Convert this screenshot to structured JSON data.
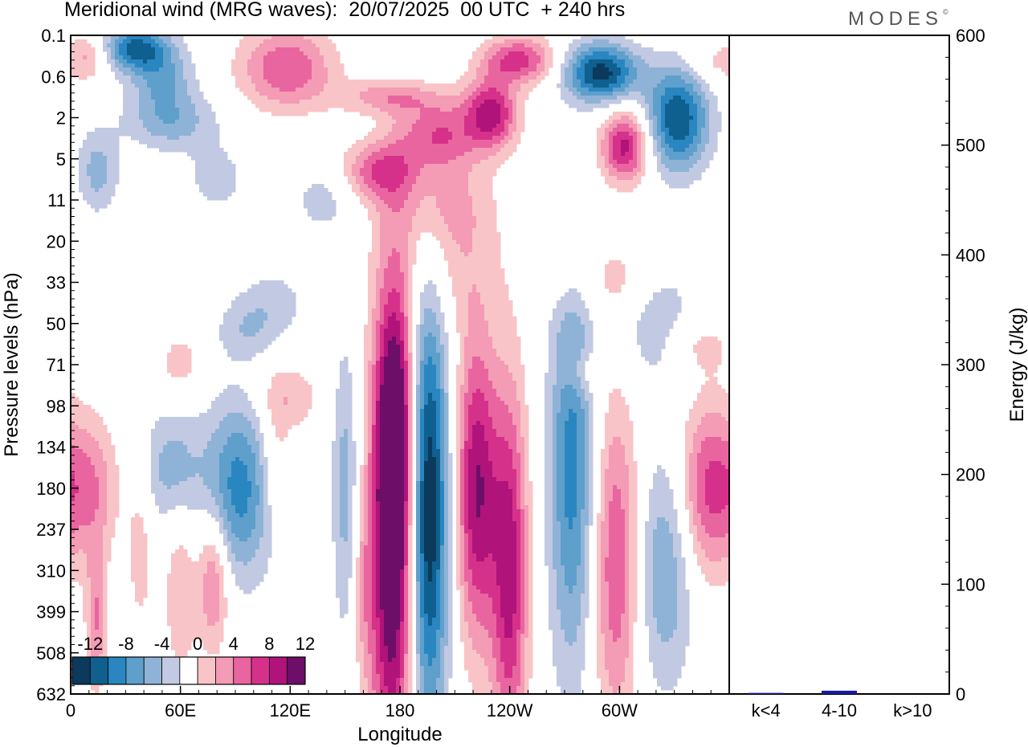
{
  "title": "Meridional wind (MRG waves):  20/07/2025  00 UTC  + 240 hrs",
  "brand": {
    "name": "MODES",
    "mark": "©"
  },
  "chart_data": [
    {
      "type": "heatmap",
      "xlabel": "Longitude",
      "ylabel": "Pressure levels (hPa)",
      "x_ticks": [
        "0",
        "60E",
        "120E",
        "180",
        "120W",
        "60W"
      ],
      "x_tick_degrees": [
        0,
        60,
        120,
        180,
        240,
        300
      ],
      "xlim": [
        0,
        360
      ],
      "y_ticks": [
        "0.1",
        "0.6",
        "2",
        "5",
        "11",
        "20",
        "33",
        "50",
        "71",
        "98",
        "134",
        "180",
        "237",
        "310",
        "399",
        "508",
        "632"
      ],
      "colorbar_labels": [
        "-12",
        "-8",
        "-4",
        "0",
        "4",
        "8",
        "12"
      ],
      "levels": [
        -14,
        -12,
        -10,
        -8,
        -6,
        -4,
        -2,
        2,
        4,
        6,
        8,
        10,
        12,
        14
      ],
      "colors": [
        "#0b3a5c",
        "#0f5f8f",
        "#2a86c0",
        "#5e9fcc",
        "#8fb3d6",
        "#c2c9e2",
        "#ffffff",
        "#f9c4c7",
        "#f49bb5",
        "#e9659f",
        "#d6318a",
        "#b0137a",
        "#6d0e69"
      ],
      "features": [
        {
          "lon": 176,
          "lev": 12.5,
          "w": 9,
          "h": 4.2,
          "v": 15
        },
        {
          "lon": 178,
          "lev": 9.5,
          "w": 7,
          "h": 2.2,
          "v": 9
        },
        {
          "lon": 195,
          "lev": 11.5,
          "w": 8,
          "h": 3.8,
          "v": -15
        },
        {
          "lon": 222,
          "lev": 11,
          "w": 8,
          "h": 2.6,
          "v": 12
        },
        {
          "lon": 240,
          "lev": 13,
          "w": 7,
          "h": 3.2,
          "v": 11
        },
        {
          "lon": 274,
          "lev": 10.5,
          "w": 9,
          "h": 3.5,
          "v": -9
        },
        {
          "lon": 298,
          "lev": 12.8,
          "w": 9,
          "h": 2.8,
          "v": 8
        },
        {
          "lon": 325,
          "lev": 13,
          "w": 11,
          "h": 2,
          "v": -6
        },
        {
          "lon": 348,
          "lev": 11,
          "w": 11,
          "h": 1.5,
          "v": 8
        },
        {
          "lon": 10,
          "lev": 11,
          "w": 11,
          "h": 1.2,
          "v": 6
        },
        {
          "lon": 92,
          "lev": 11,
          "w": 14,
          "h": 1.5,
          "v": -9
        },
        {
          "lon": 55,
          "lev": 10.5,
          "w": 11,
          "h": 1,
          "v": -5
        },
        {
          "lon": 60,
          "lev": 13.5,
          "w": 6,
          "h": 1.5,
          "v": 4
        },
        {
          "lon": 78,
          "lev": 13.2,
          "w": 6,
          "h": 1.2,
          "v": 7
        },
        {
          "lon": 38,
          "lev": 12.5,
          "w": 5,
          "h": 1.5,
          "v": 3
        },
        {
          "lon": 14,
          "lev": 14.2,
          "w": 4,
          "h": 1.2,
          "v": 6
        },
        {
          "lon": 150,
          "lev": 11,
          "w": 5,
          "h": 2.5,
          "v": -5
        },
        {
          "lon": 112,
          "lev": 10.5,
          "w": 6,
          "h": 1,
          "v": 4
        },
        {
          "lon": 160,
          "lev": 13.5,
          "w": 4,
          "h": 1.5,
          "v": 3
        },
        {
          "lon": 118,
          "lev": 8.8,
          "w": 12,
          "h": 0.6,
          "v": 4
        },
        {
          "lon": 60,
          "lev": 8,
          "w": 10,
          "h": 0.6,
          "v": 3
        },
        {
          "lon": 320,
          "lev": 7,
          "w": 16,
          "h": 1,
          "v": -4
        },
        {
          "lon": 342,
          "lev": 7.5,
          "w": 14,
          "h": 0.5,
          "v": 3
        },
        {
          "lon": 110,
          "lev": 6.5,
          "w": 14,
          "h": 0.6,
          "v": -3
        },
        {
          "lon": 280,
          "lev": 8.2,
          "w": 8,
          "h": 0.4,
          "v": 3
        },
        {
          "lon": 35,
          "lev": 0.3,
          "w": 12,
          "h": 0.4,
          "v": -10
        },
        {
          "lon": 50,
          "lev": 1,
          "w": 12,
          "h": 0.6,
          "v": -6
        },
        {
          "lon": 55,
          "lev": 2.1,
          "w": 18,
          "h": 0.5,
          "v": -5
        },
        {
          "lon": 15,
          "lev": 3.3,
          "w": 8,
          "h": 0.7,
          "v": -5
        },
        {
          "lon": 10,
          "lev": 0.5,
          "w": 7,
          "h": 0.4,
          "v": 4
        },
        {
          "lon": 118,
          "lev": 0.8,
          "w": 18,
          "h": 0.7,
          "v": 8
        },
        {
          "lon": 175,
          "lev": 1.5,
          "w": 20,
          "h": 0.3,
          "v": 5
        },
        {
          "lon": 200,
          "lev": 2.4,
          "w": 15,
          "h": 0.6,
          "v": 8
        },
        {
          "lon": 230,
          "lev": 1.9,
          "w": 10,
          "h": 0.6,
          "v": 11
        },
        {
          "lon": 168,
          "lev": 3.3,
          "w": 14,
          "h": 0.5,
          "v": 7
        },
        {
          "lon": 200,
          "lev": 4,
          "w": 20,
          "h": 0.8,
          "v": 4
        },
        {
          "lon": 205,
          "lev": 5.5,
          "w": 20,
          "h": 1.2,
          "v": 3
        },
        {
          "lon": 245,
          "lev": 0.6,
          "w": 14,
          "h": 0.4,
          "v": 9
        },
        {
          "lon": 290,
          "lev": 0.9,
          "w": 14,
          "h": 0.5,
          "v": -13
        },
        {
          "lon": 332,
          "lev": 2,
          "w": 12,
          "h": 0.9,
          "v": -12
        },
        {
          "lon": 303,
          "lev": 2.7,
          "w": 9,
          "h": 0.6,
          "v": 11
        },
        {
          "lon": 80,
          "lev": 3.5,
          "w": 12,
          "h": 0.6,
          "v": -3
        },
        {
          "lon": 138,
          "lev": 4,
          "w": 12,
          "h": 0.6,
          "v": -3
        },
        {
          "lon": 270,
          "lev": 5.5,
          "w": 10,
          "h": 0.7,
          "v": 3
        },
        {
          "lon": 300,
          "lev": 6,
          "w": 14,
          "h": 0.7,
          "v": 3
        },
        {
          "lon": 95,
          "lev": 7.2,
          "w": 12,
          "h": 0.5,
          "v": -3
        },
        {
          "lon": 350,
          "lev": 0.7,
          "w": 12,
          "h": 0.4,
          "v": 3
        }
      ]
    },
    {
      "type": "bar",
      "categories": [
        "k<4",
        "4-10",
        "k>10"
      ],
      "values": [
        1,
        3,
        0
      ],
      "ylabel": "Energy (J/kg)",
      "ylim": [
        0,
        600
      ],
      "y_ticks": [
        "0",
        "100",
        "200",
        "300",
        "400",
        "500",
        "600"
      ],
      "bar_color": "#1a1aa0"
    }
  ]
}
